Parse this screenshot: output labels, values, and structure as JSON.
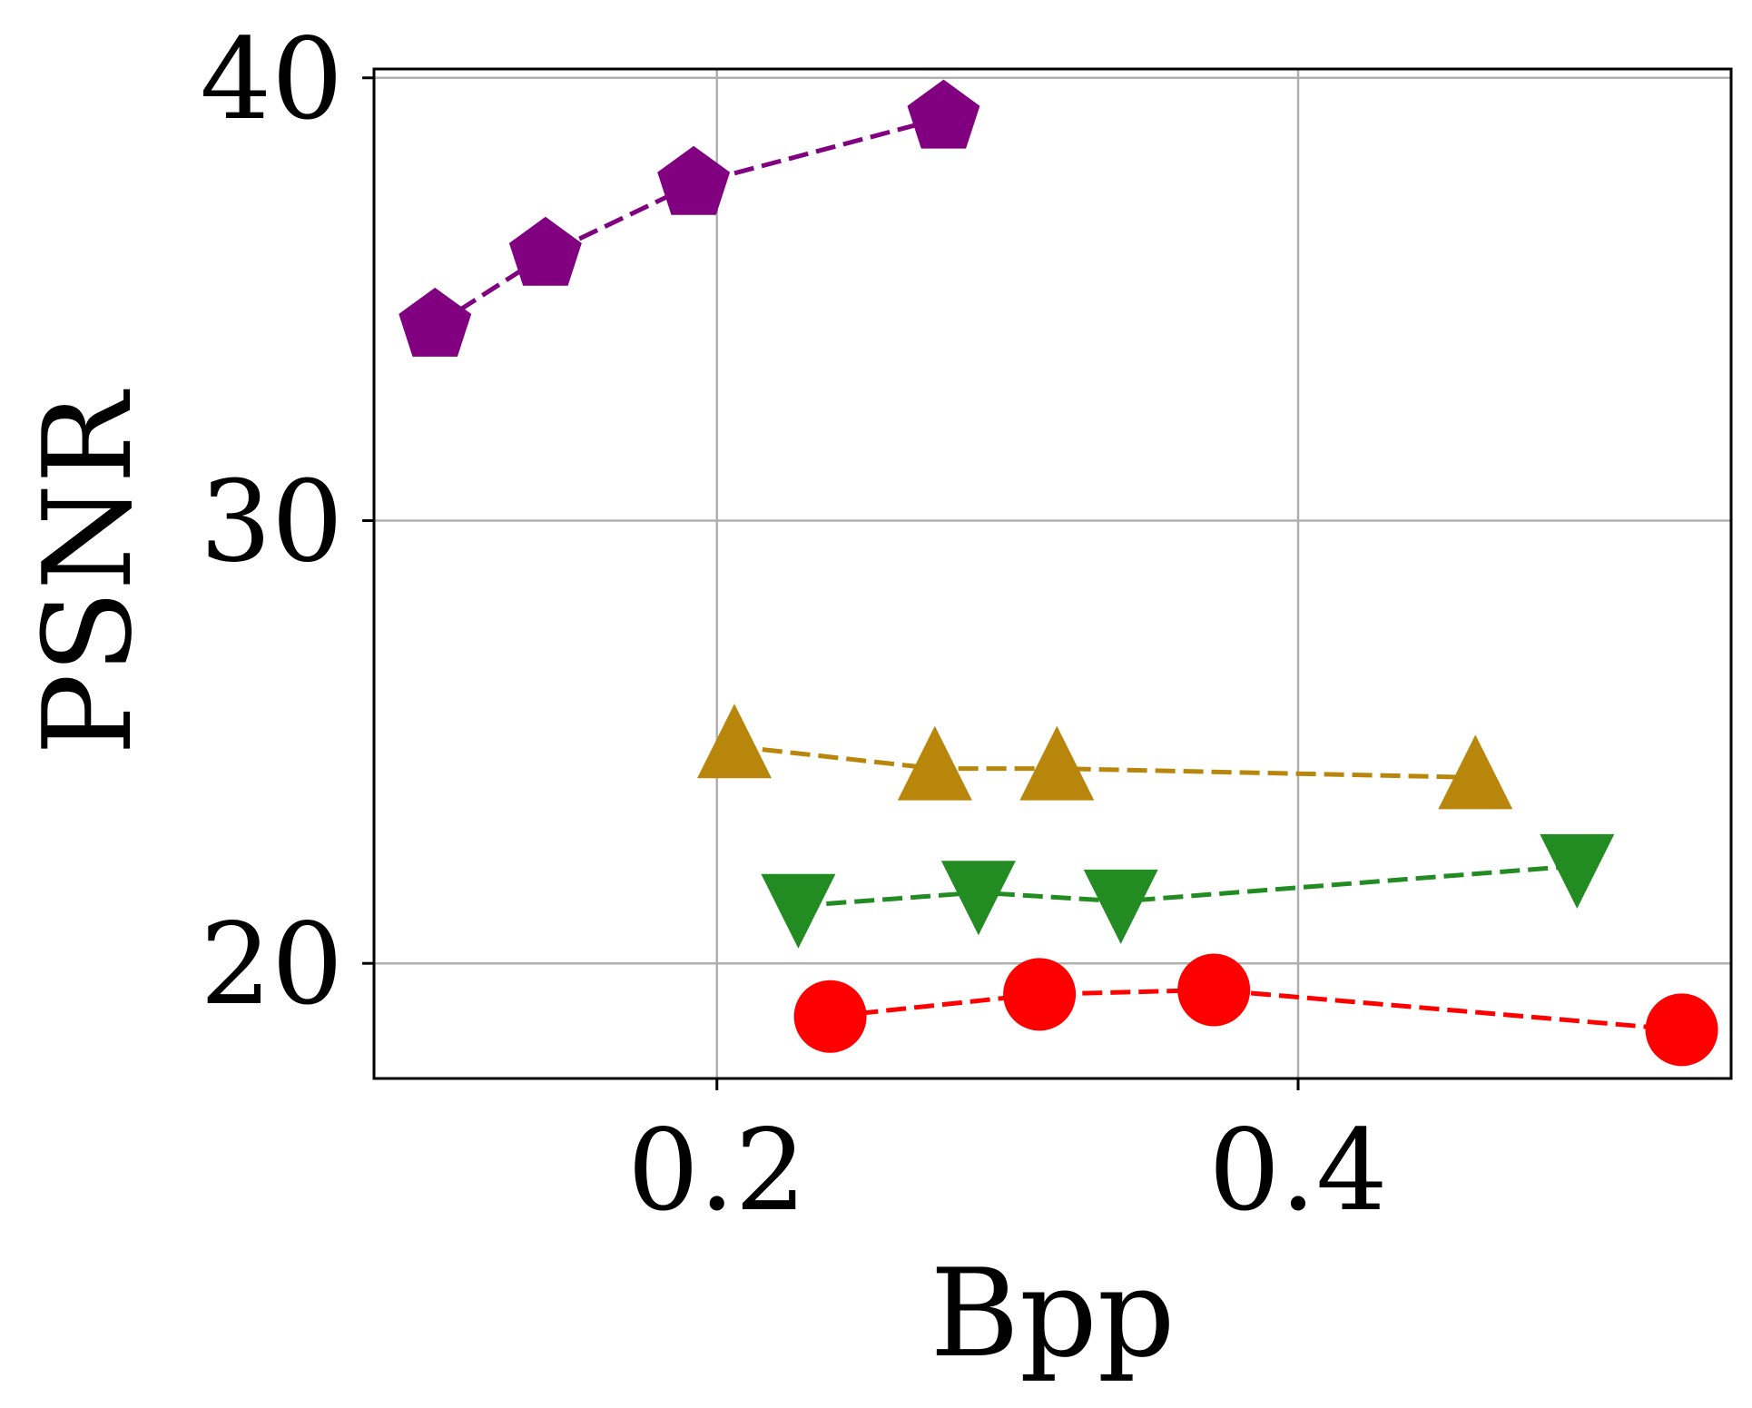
{
  "chart_data": {
    "type": "line",
    "title": "",
    "xlabel": "Bpp",
    "ylabel": "PSNR",
    "xlim": [
      0.082,
      0.549
    ],
    "ylim": [
      17.4,
      40.2
    ],
    "xticks": [
      0.2,
      0.4
    ],
    "xtick_labels": [
      "0.2",
      "0.4"
    ],
    "yticks": [
      20,
      30,
      40
    ],
    "ytick_labels": [
      "20",
      "30",
      "40"
    ],
    "grid": true,
    "legend": "none",
    "series": [
      {
        "name": "series-1",
        "color": "#800080",
        "marker": "pentagon",
        "x": [
          0.103,
          0.141,
          0.192,
          0.278
        ],
        "y": [
          34.4,
          36.0,
          37.6,
          39.1
        ]
      },
      {
        "name": "series-2",
        "color": "#b8860b",
        "marker": "triangle-up",
        "x": [
          0.206,
          0.275,
          0.317,
          0.461
        ],
        "y": [
          24.9,
          24.4,
          24.4,
          24.2
        ]
      },
      {
        "name": "series-3",
        "color": "#228b22",
        "marker": "triangle-down",
        "x": [
          0.228,
          0.29,
          0.339,
          0.496
        ],
        "y": [
          21.3,
          21.6,
          21.4,
          22.2
        ]
      },
      {
        "name": "series-4",
        "color": "#ff0000",
        "marker": "circle",
        "x": [
          0.239,
          0.311,
          0.371,
          0.532
        ],
        "y": [
          18.8,
          19.3,
          19.4,
          18.5
        ]
      }
    ]
  }
}
